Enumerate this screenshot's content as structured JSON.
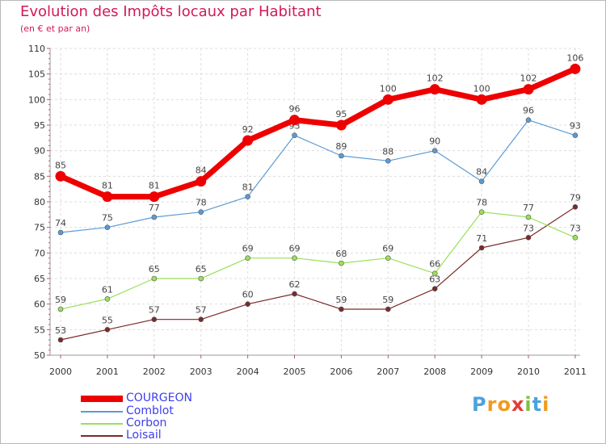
{
  "title": "Evolution des Impôts locaux par Habitant",
  "subtitle": "(en € et par an)",
  "chart_data": {
    "type": "line",
    "title": "Evolution des Impôts locaux par Habitant",
    "subtitle": "(en € et par an)",
    "xlabel": "",
    "ylabel": "",
    "x": [
      "2000",
      "2001",
      "2002",
      "2003",
      "2004",
      "2005",
      "2006",
      "2007",
      "2008",
      "2009",
      "2010",
      "2011"
    ],
    "ylim": [
      50,
      110
    ],
    "yticks": [
      50,
      55,
      60,
      65,
      70,
      75,
      80,
      85,
      90,
      95,
      100,
      105,
      110
    ],
    "legend_position": "bottom-left",
    "series": [
      {
        "name": "COURGEON",
        "color": "#ee0000",
        "values": [
          85,
          81,
          81,
          84,
          92,
          96,
          95,
          100,
          102,
          100,
          102,
          106
        ]
      },
      {
        "name": "Comblot",
        "color": "#5b9bd5",
        "values": [
          74,
          75,
          77,
          78,
          81,
          93,
          89,
          88,
          90,
          84,
          96,
          93
        ]
      },
      {
        "name": "Corbon",
        "color": "#99e05a",
        "values": [
          59,
          61,
          65,
          65,
          69,
          69,
          68,
          69,
          66,
          78,
          77,
          73
        ]
      },
      {
        "name": "Loisail",
        "color": "#7a2a2a",
        "values": [
          53,
          55,
          57,
          57,
          60,
          62,
          59,
          59,
          63,
          71,
          73,
          79
        ]
      }
    ]
  },
  "logo": {
    "letters": [
      "P",
      "r",
      "o",
      "x",
      "i",
      "t",
      "i"
    ],
    "colors": [
      "#4aa3df",
      "#f29a1d",
      "#f29a1d",
      "#e53935",
      "#7cc242",
      "#4aa3df",
      "#f29a1d"
    ]
  }
}
